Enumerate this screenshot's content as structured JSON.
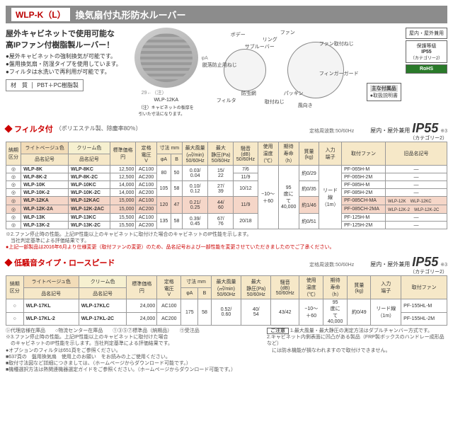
{
  "title": {
    "code": "WLP-K（L）",
    "text": "換気扇付丸形防水ルーバー"
  },
  "badges": {
    "b1": "屋内・屋外兼用",
    "b2": "保護等級",
    "b3": "IP55",
    "b4": "（カテゴリー2）",
    "rohs": "RoHS"
  },
  "intro": {
    "h": "屋外キャビネットで使用可能な\n高IPファン付樹脂製ルーバー！",
    "l1": "●屋外キャビネットの強制換気が可能です。",
    "l2": "●盤用換気扇・防湿タイプを使用しています。",
    "l3": "●フィルタは水洗いで再利用が可能です。",
    "matlbl": "材　質",
    "mat": "PBT＋PC樹脂製",
    "imgcap": "WLP-12KA",
    "dimA": "φA",
    "dimB": "29←（注）",
    "imgnote": "（注）キャビネットの板厚を\n引いた寸法になります。"
  },
  "diagram": {
    "l1": "ボデー",
    "l2": "ファン",
    "l3": "リング",
    "l4": "サブルーバー",
    "l5": "脱落防止用ねじ",
    "l6": "防虫網",
    "l7": "フィルタ",
    "l8": "取付ねじ",
    "l9": "パッキン",
    "l10": "フィンガーガード",
    "l11": "ファン取付ねじ",
    "l12": "風向き",
    "box_t": "主な付属品",
    "box_i": "●取扱説明書"
  },
  "sect1": {
    "t": "フィルタ付",
    "sub": "（ポリエステル製、除塵率80％）",
    "iptxt": "屋内・屋外兼用",
    "ip": "IP55",
    "note": "※3",
    "cat": "（カテゴリー2）",
    "freq": "定格周波数:50/60Hz"
  },
  "tbl1": {
    "h": {
      "c0": "納期\n区分",
      "c1": "ライトベージュ色",
      "c2": "クリーム色",
      "c3": "標準価格\n円",
      "c4": "定格\n電圧\nV",
      "c5": "寸法 mm",
      "c5a": "φA",
      "c5b": "B",
      "c6": "最大風量\n(㎥/min)\n50/60Hz",
      "c7": "最大\n静圧(Pa)\n50/60Hz",
      "c8": "騒音\n(dB)\n50/60Hz",
      "c9": "使用\n温度\n（℃）",
      "c10": "期待\n寿命\n（h）",
      "c11": "質量\n(kg)",
      "c12": "入力\n端子",
      "c13": "取付ファン",
      "c14": "旧品名記号"
    },
    "rows": [
      {
        "a": "◎",
        "b": "WLP-8K",
        "c": "WLP-8KC",
        "p": "12,500",
        "v": "AC100",
        "dA": "80",
        "dB": "50",
        "f": "0.03/\n0.04",
        "sp": "15/\n22",
        "n": "7/6",
        "t": "約0/29",
        "fan": "PF-065H-M",
        "old": "—"
      },
      {
        "a": "◎",
        "b": "WLP-8K-2",
        "c": "WLP-8K-2C",
        "p": "12,500",
        "v": "AC200",
        "f": "",
        "n": "11/9",
        "fan": "PF-065H-2M",
        "old": "—"
      },
      {
        "a": "◎",
        "b": "WLP-10K",
        "c": "WLP-10KC",
        "p": "14,000",
        "v": "AC100",
        "dA": "105",
        "dB": "58",
        "f": "0.10/\n0.12",
        "sp": "27/\n39",
        "n": "10/12",
        "t": "約0/35",
        "fan": "PF-085H-M",
        "old": "—"
      },
      {
        "a": "◎",
        "b": "WLP-10K-2",
        "c": "WLP-10K-2C",
        "p": "14,000",
        "v": "AC200",
        "fan": "PF-085H-2M",
        "old": "—"
      },
      {
        "a": "◎",
        "b": "WLP-12KA",
        "c": "WLP-12KAC",
        "p": "15,000",
        "v": "AC100",
        "dA": "120",
        "dB": "47",
        "f": "0.21/\n0.25",
        "sp": "44/\n60",
        "n": "11/9",
        "t": "約1/46",
        "fan": "PF-085CH-MA",
        "old1": "WLP-12K",
        "old2": "WLP-12KC",
        "hl": true
      },
      {
        "a": "◎",
        "b": "WLP-12K-2A",
        "c": "WLP-12K-2AC",
        "p": "15,000",
        "v": "AC200",
        "fan": "PF-085CH-2MA",
        "old1": "WLP-12K-2",
        "old2": "WLP-12K-2C",
        "hl": true
      },
      {
        "a": "◎",
        "b": "WLP-13K",
        "c": "WLP-13KC",
        "p": "15,500",
        "v": "AC100",
        "dA": "135",
        "dB": "58",
        "f": "0.39/\n0.45",
        "sp": "67/\n76",
        "n": "20/18",
        "t": "約0/51",
        "fan": "PF-125H-M",
        "old": "—"
      },
      {
        "a": "◎",
        "b": "WLP-13K-2",
        "c": "WLP-13K-2C",
        "p": "15,500",
        "v": "AC200",
        "fan": "PF-125H-2M",
        "old": "—"
      }
    ],
    "temp": "−10〜\n＋60",
    "life": "95\n度に\nて\n40,000",
    "term": "リード\n線\n（1m）"
  },
  "notes1": {
    "n1": "※2.ファン停止時の性能。上記IP性能以上のキャビネットに取付けた場合のキャビネットのIP性能を示します。",
    "n2": "　当社判定基準による評価結果です。",
    "n3": "●上記一部製品は2016年6月より仕様変更（取付ファンの変更）のため、品名記号および一部性能を変更させていただきましたのでご了承ください。"
  },
  "sect2": {
    "t": "低騒音タイプ・ロースピード"
  },
  "tbl2": {
    "rows": [
      {
        "a": "○",
        "b": "WLP-17KL",
        "c": "WLP-17KLC",
        "p": "24,000",
        "v": "AC100",
        "dA": "175",
        "dB": "58",
        "f": "0.52/\n0.60",
        "sp": "40/\n54",
        "n": "43/42",
        "t": "−10〜\n＋60",
        "l": "95\n度に\nて\n40,000",
        "m": "約0/49",
        "term": "リード線\n（1m）",
        "fan": "PF-155HL-M"
      },
      {
        "a": "○",
        "b": "WLP-17KL-2",
        "c": "WLP-17KL-2C",
        "p": "24,000",
        "v": "AC200",
        "fan": "PF-155HL-2M"
      }
    ]
  },
  "notes2": {
    "l1": "㋛代理店様在庫品　　○物流センター在庫品　　①③⑤⑦標準品（納期品）　　㋒受注品",
    "l2": "※3.ファン停止時の性能。上記IP性能以上のキャビネットに取付けた場合",
    "l3": "　のキャビネットのIP性能を示します。当社判定基準による評価結果です。",
    "l4": "●オプションのフィルタは651頁をご参照ください。",
    "l5": "■637頁の　盤用換気扇　使用上のお願い　をお読みの上ご使用ください。",
    "l6": "■取付寸法図など詳細につきましては、（ホームページからダウンロード可能です。）",
    "l7": "■機種選択方法は熱関連機器選定ガイドをご参照ください。（ホームページからダウンロード可能です。）",
    "r1": "1.最大風量・最大静圧の測定方法はダブルチャンバー方式です。",
    "r2": "2.キャビネット内側表面に凹凸がある製品（FRP製ボックスのハンドレー成形品など）",
    "r3": "　には防水機能が損なわれますので取付けできません。",
    "rbox": "ご注意"
  }
}
